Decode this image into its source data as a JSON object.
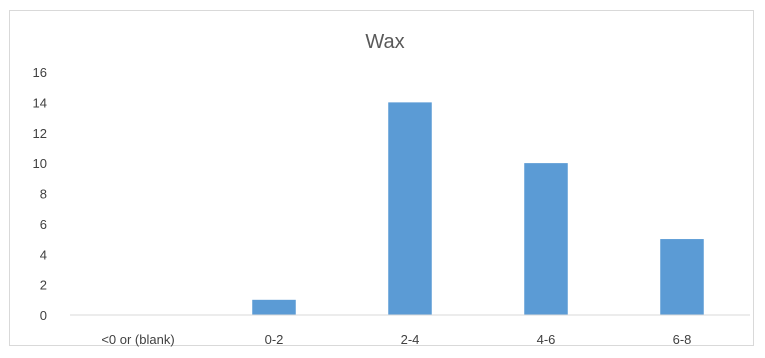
{
  "chart_data": {
    "type": "bar",
    "title": "Wax",
    "xlabel": "",
    "ylabel": "",
    "categories": [
      "<0 or (blank)",
      "0-2",
      "2-4",
      "4-6",
      "6-8"
    ],
    "values": [
      0,
      1,
      14,
      10,
      5
    ],
    "ylim": [
      0,
      16
    ],
    "yticks": [
      "0",
      "2",
      "4",
      "6",
      "8",
      "10",
      "12",
      "14",
      "16"
    ],
    "grid": false,
    "legend": "none",
    "bar_color": "#5b9bd5"
  }
}
